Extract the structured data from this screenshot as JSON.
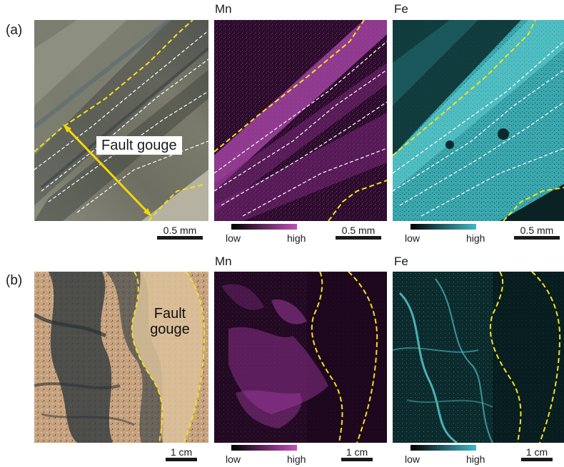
{
  "rows": {
    "a": {
      "label": "(a)",
      "titles": {
        "mn": "Mn",
        "fe": "Fe"
      },
      "annotation": "Fault gouge",
      "scalebars": [
        "0.5 mm",
        "0.5 mm",
        "0.5 mm"
      ],
      "colorbars": {
        "mn": {
          "low": "low",
          "high": "high"
        },
        "fe": {
          "low": "low",
          "high": "high"
        }
      }
    },
    "b": {
      "label": "(b)",
      "titles": {
        "mn": "Mn",
        "fe": "Fe"
      },
      "annotation_line1": "Fault",
      "annotation_line2": "gouge",
      "scalebars": [
        "1 cm",
        "1 cm",
        "1 cm"
      ],
      "colorbars": {
        "mn": {
          "low": "low",
          "high": "high"
        },
        "fe": {
          "low": "low",
          "high": "high"
        }
      }
    }
  },
  "colors": {
    "mn_low": "#1a0a1a",
    "mn_high": "#c040c0",
    "fe_low": "#0a1a1a",
    "fe_high": "#40c0c8",
    "boundary": "#f5e020",
    "arrow": "#f5d800",
    "dashed_inner": "#ffffff"
  }
}
